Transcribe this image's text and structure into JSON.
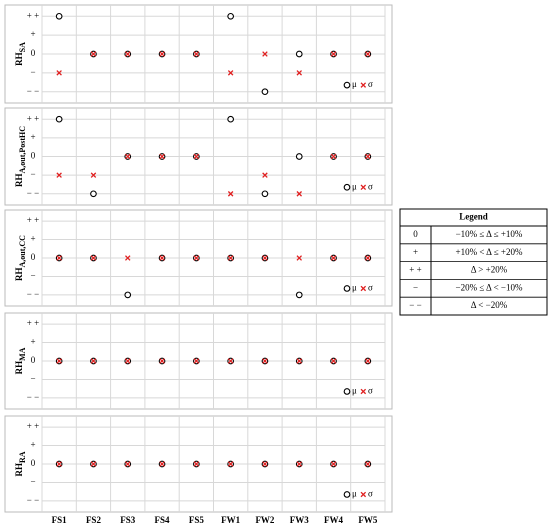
{
  "categories": [
    "FS1",
    "FS2",
    "FS3",
    "FS4",
    "FS5",
    "FW1",
    "FW2",
    "FW3",
    "FW4",
    "FW5"
  ],
  "chart_data": [
    {
      "type": "scatter",
      "ylabel": {
        "main": "RH",
        "sub": "SA"
      },
      "ylim": [
        -2.6,
        2.6
      ],
      "yticks": [
        {
          "value": 2,
          "label": "+ +"
        },
        {
          "value": 1,
          "label": "+"
        },
        0,
        {
          "value": -1,
          "label": "−"
        },
        {
          "value": -2,
          "label": "− −"
        }
      ],
      "grid": true,
      "series": [
        {
          "name": "μ",
          "color": "#000000",
          "values": [
            2,
            0,
            0,
            0,
            0,
            2,
            -2,
            0,
            0,
            0
          ]
        },
        {
          "name": "σ",
          "color": "#e02020",
          "values": [
            -1,
            0,
            0,
            0,
            0,
            -1,
            0,
            -1,
            0,
            0
          ]
        }
      ]
    },
    {
      "type": "scatter",
      "ylabel": {
        "main": "RH",
        "sub": "A,out,PostHC"
      },
      "ylim": [
        -2.6,
        2.6
      ],
      "yticks": [
        {
          "value": 2,
          "label": "+ +"
        },
        {
          "value": 1,
          "label": "+"
        },
        0,
        {
          "value": -1,
          "label": "−"
        },
        {
          "value": -2,
          "label": "− −"
        }
      ],
      "grid": true,
      "series": [
        {
          "name": "μ",
          "color": "#000000",
          "values": [
            2,
            -2,
            0,
            0,
            0,
            2,
            -2,
            0,
            0,
            0
          ]
        },
        {
          "name": "σ",
          "color": "#e02020",
          "values": [
            -1,
            -1,
            0,
            0,
            0,
            -2,
            -1,
            -2,
            0,
            0
          ]
        }
      ]
    },
    {
      "type": "scatter",
      "ylabel": {
        "main": "RH",
        "sub": "A,out,CC"
      },
      "ylim": [
        -2.6,
        2.6
      ],
      "yticks": [
        {
          "value": 2,
          "label": "+ +"
        },
        {
          "value": 1,
          "label": "+"
        },
        0,
        {
          "value": -1,
          "label": "−"
        },
        {
          "value": -2,
          "label": "− −"
        }
      ],
      "grid": true,
      "series": [
        {
          "name": "μ",
          "color": "#000000",
          "values": [
            0,
            0,
            -2,
            0,
            0,
            0,
            0,
            -2,
            0,
            0
          ]
        },
        {
          "name": "σ",
          "color": "#e02020",
          "values": [
            0,
            0,
            0,
            0,
            0,
            0,
            0,
            0,
            0,
            0
          ]
        }
      ]
    },
    {
      "type": "scatter",
      "ylabel": {
        "main": "RH",
        "sub": "MA"
      },
      "ylim": [
        -2.6,
        2.6
      ],
      "yticks": [
        {
          "value": 2,
          "label": "+ +"
        },
        {
          "value": 1,
          "label": "+"
        },
        0,
        {
          "value": -1,
          "label": "−"
        },
        {
          "value": -2,
          "label": "− −"
        }
      ],
      "grid": true,
      "series": [
        {
          "name": "μ",
          "color": "#000000",
          "values": [
            0,
            0,
            0,
            0,
            0,
            0,
            0,
            0,
            0,
            0
          ]
        },
        {
          "name": "σ",
          "color": "#e02020",
          "values": [
            0,
            0,
            0,
            0,
            0,
            0,
            0,
            0,
            0,
            0
          ]
        }
      ]
    },
    {
      "type": "scatter",
      "ylabel": {
        "main": "RH",
        "sub": "RA"
      },
      "ylim": [
        -2.6,
        2.6
      ],
      "yticks": [
        {
          "value": 2,
          "label": "+ +"
        },
        {
          "value": 1,
          "label": "+"
        },
        0,
        {
          "value": -1,
          "label": "−"
        },
        {
          "value": -2,
          "label": "− −"
        }
      ],
      "grid": true,
      "series": [
        {
          "name": "μ",
          "color": "#000000",
          "values": [
            0,
            0,
            0,
            0,
            0,
            0,
            0,
            0,
            0,
            0
          ]
        },
        {
          "name": "σ",
          "color": "#e02020",
          "values": [
            0,
            0,
            0,
            0,
            0,
            0,
            0,
            0,
            0,
            0
          ]
        }
      ]
    }
  ],
  "legend_table": {
    "title": "Legend",
    "rows": [
      [
        "0",
        "−10% ≤ Δ ≤ +10%"
      ],
      [
        "+",
        "+10% < Δ ≤ +20%"
      ],
      [
        "+ +",
        "Δ > +20%"
      ],
      [
        "−",
        "−20% ≤ Δ < −10%"
      ],
      [
        "− −",
        "Δ < −20%"
      ]
    ]
  }
}
